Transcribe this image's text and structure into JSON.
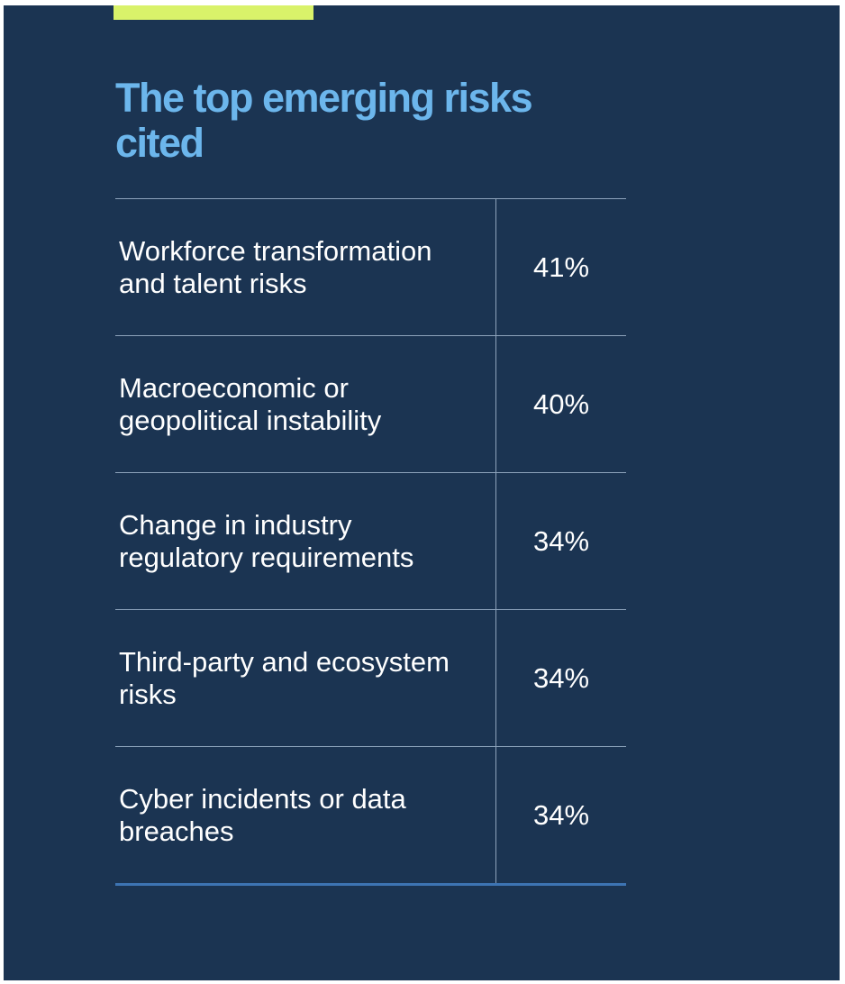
{
  "chart_data": {
    "type": "table",
    "title": "The top emerging risks cited",
    "categories": [
      "Workforce transformation and talent risks",
      "Macroeconomic or geopolitical instability",
      "Change in industry regulatory requirements",
      "Third-party and ecosystem risks",
      "Cyber incidents or data breaches"
    ],
    "values": [
      41,
      40,
      34,
      34,
      34
    ],
    "value_labels": [
      "41%",
      "40%",
      "34%",
      "34%",
      "34%"
    ],
    "unit": "%"
  },
  "colors": {
    "background": "#1b3452",
    "accent": "#d9f26a",
    "title": "#6cb6ec",
    "text": "#ffffff",
    "rule": "#8da3bb",
    "bottom_rule": "#3d74b3"
  }
}
